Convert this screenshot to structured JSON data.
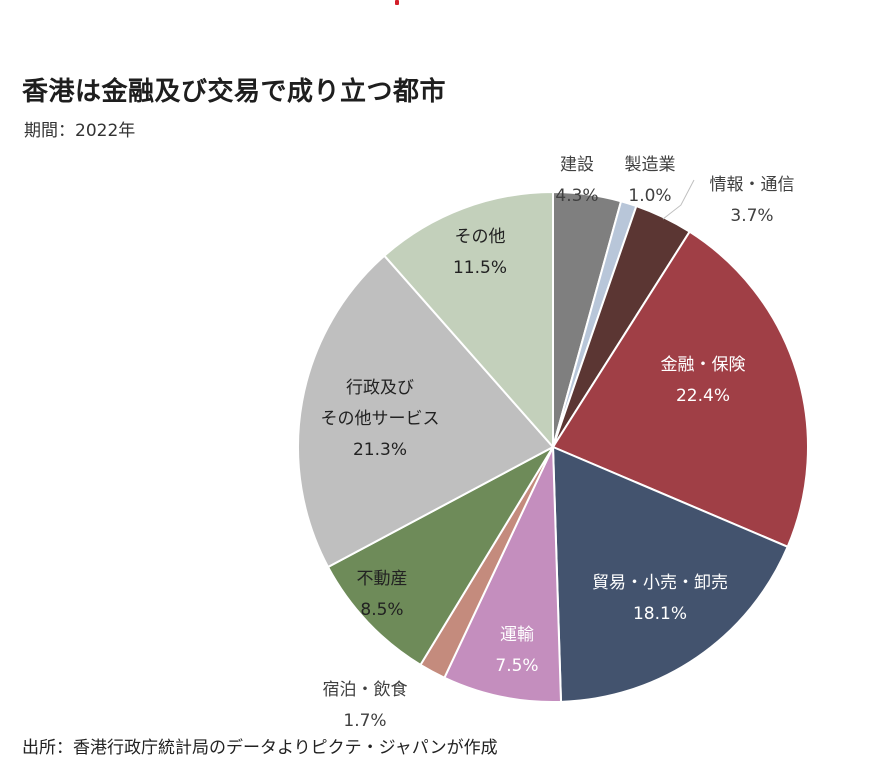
{
  "title": "香港は金融及び交易で成り立つ都市",
  "period": "期間：2022年",
  "source": "出所：香港行政庁統計局のデータよりピクテ・ジャパンが作成",
  "chart_data": {
    "type": "pie",
    "title": "香港は金融及び交易で成り立つ都市",
    "unit": "%",
    "slices": [
      {
        "label": [
          "建設"
        ],
        "value": 4.3,
        "value_label": "4.3%",
        "color": "#7f7f7f"
      },
      {
        "label": [
          "製造業"
        ],
        "value": 1.0,
        "value_label": "1.0%",
        "color": "#b8c6d9"
      },
      {
        "label": [
          "情報・通信"
        ],
        "value": 3.7,
        "value_label": "3.7%",
        "color": "#5b3633"
      },
      {
        "label": [
          "金融・保険"
        ],
        "value": 22.4,
        "value_label": "22.4%",
        "color": "#a03f46"
      },
      {
        "label": [
          "貿易・小売・卸売"
        ],
        "value": 18.1,
        "value_label": "18.1%",
        "color": "#43536e"
      },
      {
        "label": [
          "運輸"
        ],
        "value": 7.5,
        "value_label": "7.5%",
        "color": "#c48ebe"
      },
      {
        "label": [
          "宿泊・飲食"
        ],
        "value": 1.7,
        "value_label": "1.7%",
        "color": "#c48b7d"
      },
      {
        "label": [
          "不動産"
        ],
        "value": 8.5,
        "value_label": "8.5%",
        "color": "#6e8b59"
      },
      {
        "label": [
          "行政及び",
          "その他サービス"
        ],
        "value": 21.3,
        "value_label": "21.3%",
        "color": "#bfbfbf"
      },
      {
        "label": [
          "その他"
        ],
        "value": 11.5,
        "value_label": "11.5%",
        "color": "#c3d0bb"
      }
    ]
  }
}
